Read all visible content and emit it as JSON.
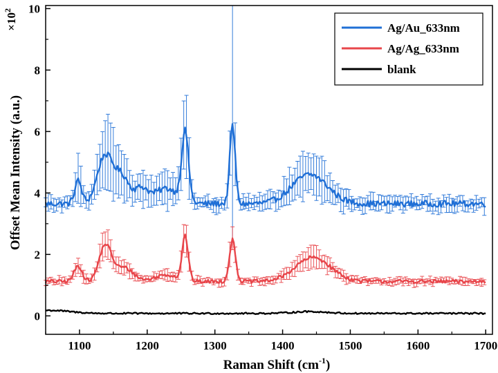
{
  "chart_data": {
    "type": "line",
    "xlabel": "Raman Shift (cm",
    "xlabel_sup": "-1",
    "xlabel_suffix": ")",
    "ylabel": "Offset Mean Intensity (a.u.)",
    "y_multiplier": "×10",
    "y_multiplier_exp": "2",
    "xlim": [
      1050,
      1710
    ],
    "ylim": [
      -0.6,
      10.1
    ],
    "x_ticks": [
      "1100",
      "1200",
      "1300",
      "1400",
      "1500",
      "1600",
      "1700"
    ],
    "y_ticks": [
      "0",
      "2",
      "4",
      "6",
      "8",
      "10"
    ],
    "legend_position": "top-right",
    "series": [
      {
        "name": "Ag/Au_633nm",
        "color": "#1f6fd6",
        "baseline": 3.65,
        "noise": 0.1,
        "err_base": 0.22,
        "err_scale": 0.55,
        "peaks": [
          {
            "x": 1098,
            "h": 0.75,
            "w": 5
          },
          {
            "x": 1137,
            "h": 1.5,
            "w": 11
          },
          {
            "x": 1162,
            "h": 0.9,
            "w": 12
          },
          {
            "x": 1192,
            "h": 0.45,
            "w": 9
          },
          {
            "x": 1228,
            "h": 0.5,
            "w": 18
          },
          {
            "x": 1256,
            "h": 2.25,
            "w": 5
          },
          {
            "x": 1326,
            "h": 2.55,
            "w": 4
          },
          {
            "x": 1440,
            "h": 0.95,
            "w": 26
          }
        ],
        "max_err": {
          "x": 1326,
          "err": 3.85
        }
      },
      {
        "name": "Ag/Ag_633nm",
        "color": "#e8454a",
        "baseline": 1.12,
        "noise": 0.06,
        "err_base": 0.1,
        "err_scale": 0.3,
        "peaks": [
          {
            "x": 1098,
            "h": 0.5,
            "w": 6
          },
          {
            "x": 1138,
            "h": 1.15,
            "w": 9
          },
          {
            "x": 1165,
            "h": 0.45,
            "w": 14
          },
          {
            "x": 1228,
            "h": 0.22,
            "w": 16
          },
          {
            "x": 1256,
            "h": 1.45,
            "w": 4.5
          },
          {
            "x": 1326,
            "h": 1.35,
            "w": 4.5
          },
          {
            "x": 1445,
            "h": 0.78,
            "w": 26
          }
        ],
        "max_err": {
          "x": 1256,
          "err": 0.6
        }
      },
      {
        "name": "blank",
        "color": "#000000",
        "baseline": 0.08,
        "noise": 0.025,
        "err_base": 0,
        "err_scale": 0,
        "peaks": [
          {
            "x": 1055,
            "h": 0.1,
            "w": 30
          },
          {
            "x": 1440,
            "h": 0.06,
            "w": 25
          }
        ]
      }
    ],
    "x_range": [
      1050,
      1700
    ]
  }
}
